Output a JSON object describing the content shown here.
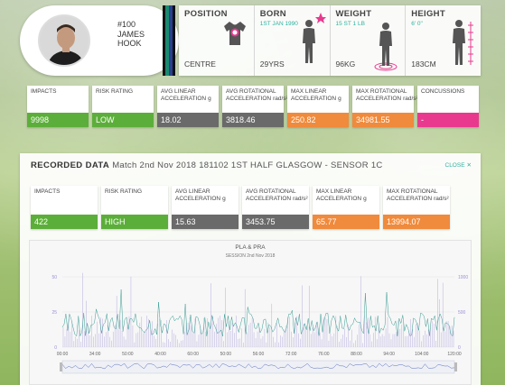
{
  "player": {
    "number": "#100",
    "first_name": "JAMES",
    "last_name": "HOOK"
  },
  "team_stripe_colors": [
    "#111111",
    "#1b8a6f",
    "#2a3f8f",
    "#111111"
  ],
  "info": [
    {
      "title": "POSITION",
      "sub": "",
      "value": "CENTRE",
      "illustration": "jersey-icon"
    },
    {
      "title": "BORN",
      "sub": "1ST JAN 1990",
      "value": "29YRS",
      "illustration": "player-silhouette-icon"
    },
    {
      "title": "WEIGHT",
      "sub": "15 ST 1 LB",
      "value": "96KG",
      "illustration": "weight-silhouette-icon"
    },
    {
      "title": "HEIGHT",
      "sub": "6' 0\"",
      "value": "183CM",
      "illustration": "height-silhouette-icon"
    }
  ],
  "overall_metrics": [
    {
      "label": "IMPACTS",
      "unit": "",
      "value": "9998",
      "color": "#5cae3a"
    },
    {
      "label": "RISK RATING",
      "unit": "",
      "value": "LOW",
      "color": "#5cae3a"
    },
    {
      "label": "AVG LINEAR ACCELERATION",
      "unit": "g",
      "value": "18.02",
      "color": "#6a6a6a"
    },
    {
      "label": "AVG ROTATIONAL ACCELERATION",
      "unit": "rad/s²",
      "value": "3818.46",
      "color": "#6a6a6a"
    },
    {
      "label": "MAX LINEAR ACCELERATION",
      "unit": "g",
      "value": "250.82",
      "color": "#f08a3c"
    },
    {
      "label": "MAX ROTATIONAL ACCELERATION",
      "unit": "rad/s²",
      "value": "34981.55",
      "color": "#f08a3c"
    },
    {
      "label": "CONCUSSIONS",
      "unit": "",
      "value": "-",
      "color": "#e8398f"
    }
  ],
  "recorded": {
    "title": "RECORDED DATA",
    "match": "Match 2nd Nov 2018 181102 1ST HALF GLASGOW - SENSOR 1C",
    "close_label": "CLOSE",
    "metrics": [
      {
        "label": "IMPACTS",
        "unit": "",
        "value": "422",
        "color": "#5cae3a"
      },
      {
        "label": "RISK RATING",
        "unit": "",
        "value": "HIGH",
        "color": "#5cae3a"
      },
      {
        "label": "AVG LINEAR ACCELERATION",
        "unit": "g",
        "value": "15.63",
        "color": "#6a6a6a"
      },
      {
        "label": "AVG ROTATIONAL ACCELERATION",
        "unit": "rad/s²",
        "value": "3453.75",
        "color": "#6a6a6a"
      },
      {
        "label": "MAX LINEAR ACCELERATION",
        "unit": "g",
        "value": "65.77",
        "color": "#f08a3c"
      },
      {
        "label": "MAX ROTATIONAL ACCELERATION",
        "unit": "rad/s²",
        "value": "13994.07",
        "color": "#f08a3c"
      }
    ]
  },
  "chart_data": {
    "type": "line",
    "title": "PLA & PRA",
    "subtitle": "SESSION 2nd Nov 2018",
    "x_ticks": [
      "00:00",
      "34:00",
      "50:00",
      "40:00",
      "60:00",
      "50:00",
      "56:00",
      "72:00",
      "76:00",
      "88:00",
      "94:00",
      "104:00",
      "120:00"
    ],
    "y_left_ticks": [
      "0",
      "25",
      "50"
    ],
    "y_right_ticks": [
      "0",
      "500",
      "1000"
    ],
    "series": [
      {
        "color": "#3a9c93"
      },
      {
        "color": "#9b8fd6"
      }
    ],
    "navigator": true
  }
}
